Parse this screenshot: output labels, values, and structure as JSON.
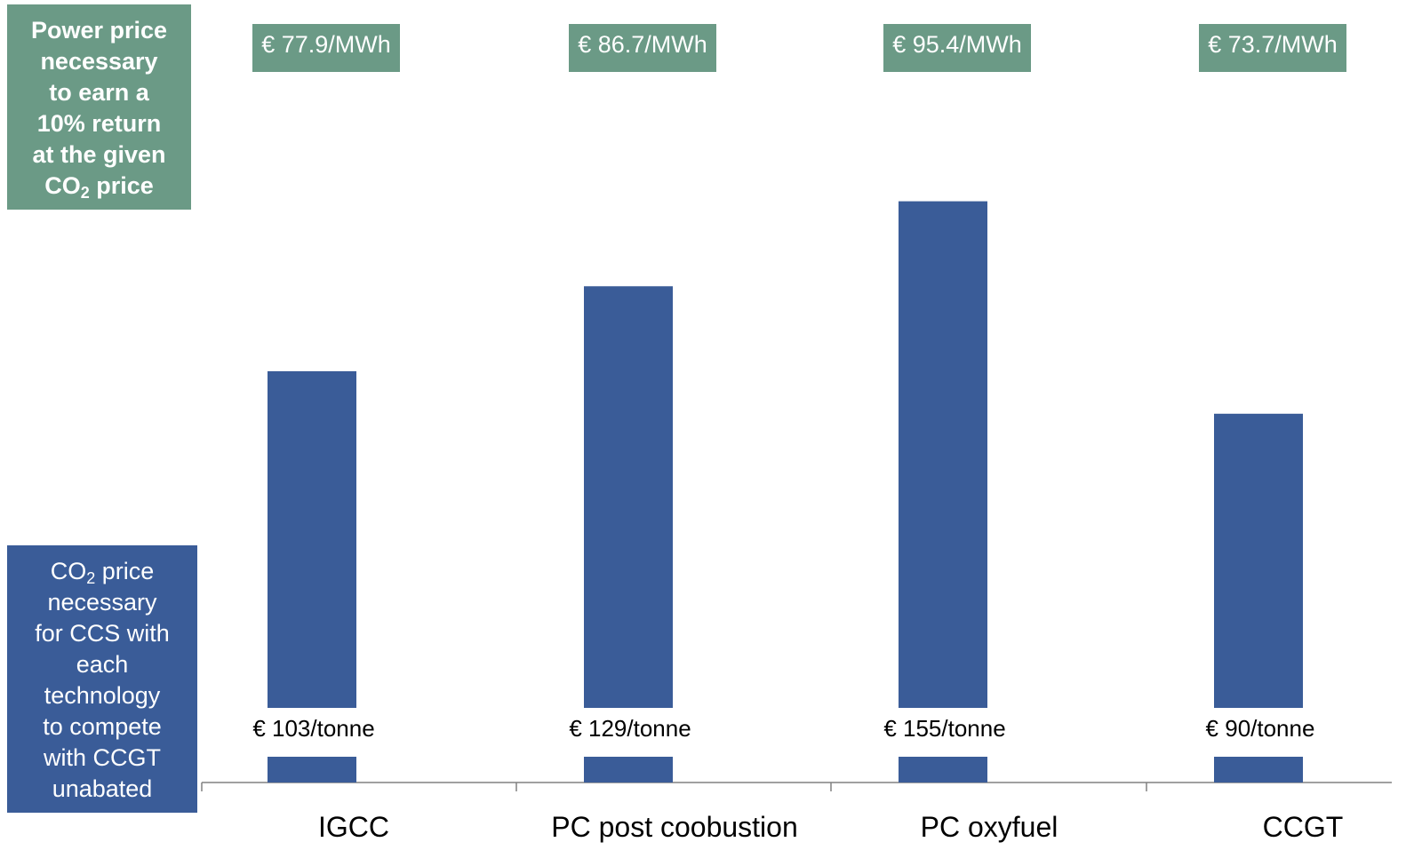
{
  "legend": {
    "power_lines": [
      "Power price",
      "necessary",
      "to earn a",
      "10% return",
      "at the given"
    ],
    "power_last_pre": "CO",
    "power_last_sub": "2",
    "power_last_post": " price",
    "co2_first_pre": "CO",
    "co2_first_sub": "2",
    "co2_first_post": " price",
    "co2_lines": [
      "necessary",
      "for CCS with",
      "each",
      "technology",
      "to compete",
      "with CCGT",
      "unabated"
    ]
  },
  "colors": {
    "bar": "#3a5c98",
    "power_box": "#6b9a86",
    "axis": "#808080"
  },
  "chart_data": {
    "type": "bar",
    "title": "",
    "xlabel": "",
    "ylabel": "",
    "categories": [
      "IGCC",
      "PC post coobustion",
      "PC oxyfuel",
      "CCGT"
    ],
    "series": [
      {
        "values": [
          103,
          129,
          155,
          90
        ],
        "value_labels": [
          "€ 103/tonne",
          "€ 129/tonne",
          "€ 155/tonne",
          "€ 90/tonne"
        ]
      },
      {
        "values": [
          77.9,
          86.7,
          95.4,
          73.7
        ],
        "value_labels": [
          "€ 77.9/MWh",
          "€ 86.7/MWh",
          "€ 95.4/MWh",
          "€ 73.7/MWh"
        ]
      }
    ],
    "ylim": [
      0,
      250
    ],
    "grid": false,
    "broken_axis": true
  }
}
